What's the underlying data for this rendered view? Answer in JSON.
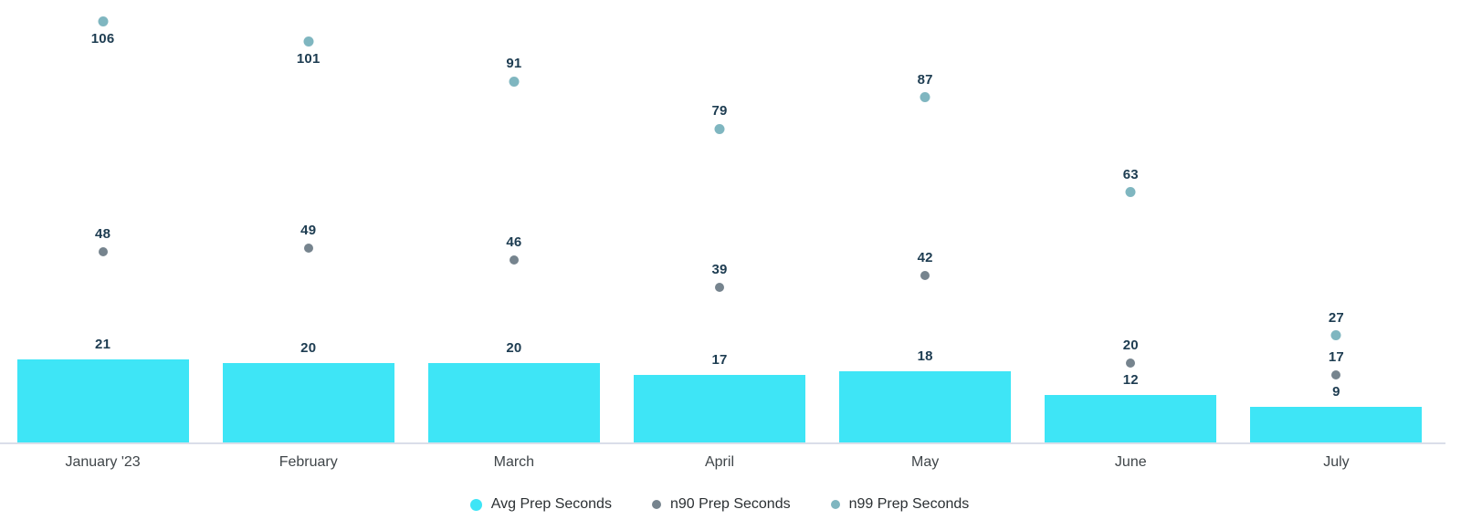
{
  "chart_data": {
    "type": "bar",
    "subtype": "bar-with-scatter-overlay",
    "title": "",
    "xlabel": "",
    "ylabel": "",
    "categories": [
      "January '23",
      "February",
      "March",
      "April",
      "May",
      "June",
      "July"
    ],
    "series": [
      {
        "name": "Avg Prep Seconds",
        "kind": "bar",
        "color": "#3EE5F6",
        "values": [
          21,
          20,
          20,
          17,
          18,
          12,
          9
        ]
      },
      {
        "name": "n90 Prep Seconds",
        "kind": "scatter",
        "color": "#76848E",
        "values": [
          48,
          49,
          46,
          39,
          42,
          20,
          17
        ],
        "label_placement": [
          "above",
          "above",
          "above",
          "above",
          "above",
          "above",
          "above"
        ]
      },
      {
        "name": "n99 Prep Seconds",
        "kind": "scatter",
        "color": "#7FB6C0",
        "values": [
          106,
          101,
          91,
          79,
          87,
          63,
          27
        ],
        "label_placement": [
          "below",
          "below",
          "above",
          "above",
          "above",
          "above",
          "above"
        ]
      }
    ],
    "ylim": [
      0,
      112
    ],
    "grid": false,
    "y_axis_visible": false,
    "legend_position": "bottom-center",
    "value_labels": true,
    "value_label_color": "#1D3C51",
    "axis_label_color": "#3F4549",
    "legend_text_color": "#2B3033",
    "axis_line_color": "#DADEE9",
    "background_color": "#FFFFFF"
  }
}
